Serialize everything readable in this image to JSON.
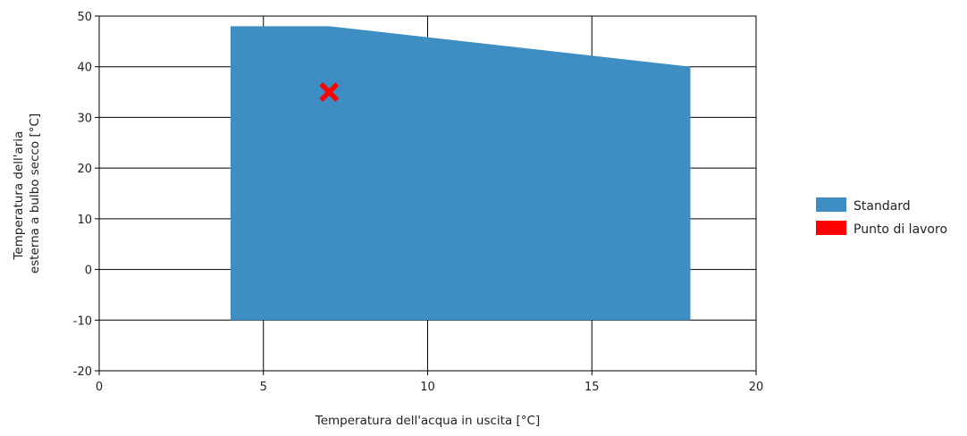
{
  "chart_data": {
    "type": "area",
    "xlabel": "Temperatura dell'acqua in uscita [°C]",
    "ylabel_lines": [
      "Temperatura dell'aria",
      "esterna a bulbo secco [°C]"
    ],
    "xlim": [
      0,
      20
    ],
    "ylim": [
      -20,
      50
    ],
    "x_ticks": [
      0,
      5,
      10,
      15,
      20
    ],
    "y_ticks": [
      -20,
      -10,
      0,
      10,
      20,
      30,
      40,
      50
    ],
    "grid": true,
    "legend_position": "right",
    "series": [
      {
        "name": "Standard",
        "kind": "area",
        "color": "#3e8ec4",
        "polygon": [
          [
            4,
            -10
          ],
          [
            4,
            48
          ],
          [
            7,
            48
          ],
          [
            18,
            40
          ],
          [
            18,
            -10
          ]
        ]
      },
      {
        "name": "Punto di lavoro",
        "kind": "point",
        "marker": "x",
        "color": "#ff0000",
        "points": [
          [
            7,
            35
          ]
        ]
      }
    ]
  }
}
